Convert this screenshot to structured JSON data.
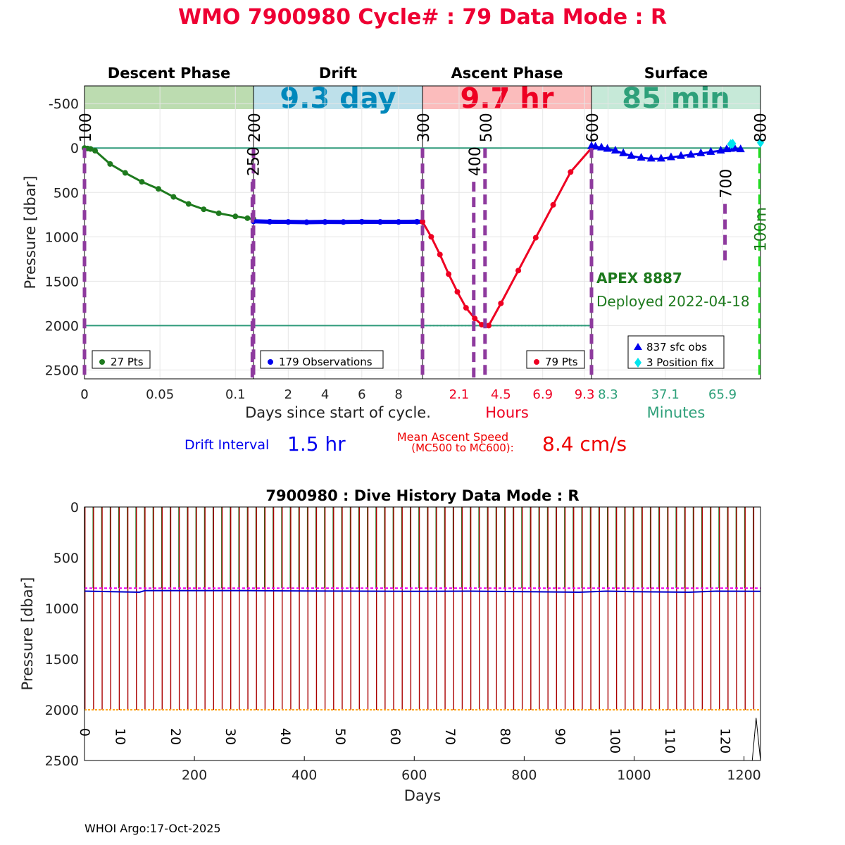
{
  "header": {
    "title": "WMO 7900980   Cycle# : 79   Data Mode : R"
  },
  "colors": {
    "title": "#ee0033",
    "descent": "#1e7a1e",
    "drift": "#0000ee",
    "ascent": "#ee0022",
    "surface": "#0000ee",
    "position_fix": "#00e5ee",
    "marker": "#8e3a9e",
    "ref_line": "#2e9a7a",
    "descent_band": "#bcdcb0",
    "drift_band": "#bde0ea",
    "ascent_band": "#fbbcbc",
    "surface_band": "#c6e9d8",
    "drift_label": "#0088bb",
    "ascent_label": "#ee0022",
    "surface_label": "#2ea07a",
    "apex": "#1e7a1e",
    "history_descent": "#1e7a1e",
    "history_ascent": "#aa0000",
    "history_drift": "#0000cc",
    "history_park": "#ee00ee",
    "history_profile": "#ffaa22"
  },
  "chart_data": [
    {
      "type": "line",
      "phases": [
        {
          "name": "Descent Phase",
          "duration": ""
        },
        {
          "name": "Drift",
          "duration": "9.3 day"
        },
        {
          "name": "Ascent Phase",
          "duration": "9.7 hr"
        },
        {
          "name": "Surface",
          "duration": "85 min"
        }
      ],
      "ylabel": "Pressure [dbar]",
      "ylim": [
        2600,
        -700
      ],
      "yticks": [
        -500,
        0,
        500,
        1000,
        1500,
        2000,
        2500
      ],
      "ref_lines": [
        0,
        2000
      ],
      "descent": {
        "xlabel": "Days since start of cycle.",
        "xlim": [
          0,
          0.112
        ],
        "xticks": [
          0,
          0.05,
          0.1
        ],
        "x": [
          0,
          0.002,
          0.004,
          0.007,
          0.017,
          0.027,
          0.038,
          0.049,
          0.059,
          0.069,
          0.079,
          0.089,
          0.1,
          0.108,
          0.112
        ],
        "y": [
          0,
          5,
          10,
          30,
          180,
          280,
          380,
          460,
          550,
          630,
          690,
          735,
          770,
          790,
          800
        ],
        "legend": "27 Pts"
      },
      "drift": {
        "xlim": [
          0.112,
          9.3
        ],
        "xticks": [
          2,
          4,
          6,
          8
        ],
        "x": [
          0.112,
          1,
          2,
          3,
          4,
          5,
          6,
          7,
          8,
          9,
          9.3
        ],
        "y": [
          825,
          830,
          832,
          835,
          832,
          833,
          830,
          832,
          832,
          830,
          830
        ],
        "legend": "179 Observations"
      },
      "ascent": {
        "xlabel": "Hours",
        "xlim": [
          0,
          9.7
        ],
        "xticks": [
          "2.1",
          "4.5",
          "6.9",
          "9.3"
        ],
        "x": [
          0,
          0.5,
          1.0,
          1.5,
          2.0,
          2.5,
          3.0,
          3.4,
          3.8,
          4.5,
          5.5,
          6.5,
          7.5,
          8.5,
          9.7
        ],
        "y": [
          830,
          1000,
          1200,
          1420,
          1620,
          1800,
          1920,
          1990,
          2000,
          1750,
          1380,
          1010,
          640,
          270,
          0
        ],
        "legend": "79 Pts"
      },
      "surface": {
        "xlabel": "Minutes",
        "xlim": [
          0,
          85
        ],
        "xticks": [
          "8.3",
          "37.1",
          "65.9"
        ],
        "x": [
          0,
          2,
          5,
          8,
          12,
          16,
          20,
          25,
          30,
          35,
          40,
          45,
          50,
          55,
          60,
          65,
          68,
          70,
          72,
          75
        ],
        "y": [
          -20,
          -15,
          -5,
          10,
          30,
          60,
          90,
          110,
          120,
          120,
          105,
          90,
          75,
          60,
          45,
          30,
          15,
          10,
          5,
          15
        ],
        "legend": "837 sfc obs",
        "position_fix_x": [
          70,
          71,
          85
        ],
        "position_fix_y": [
          -45,
          -50,
          -60
        ],
        "position_fix_legend": "3 Position fix"
      },
      "markers": [
        {
          "label": "100",
          "x_frac": 0.0,
          "y_top": 0,
          "y_bot": 2600
        },
        {
          "label": "200",
          "x_frac": 0.25,
          "y_top": 0,
          "y_bot": 2600
        },
        {
          "label": "250",
          "x_frac": 0.2483,
          "y_top": 380,
          "y_bot": 2600
        },
        {
          "label": "300",
          "x_frac": 0.5,
          "y_top": 0,
          "y_bot": 2600
        },
        {
          "label": "400",
          "x_frac": 0.5758,
          "y_top": 380,
          "y_bot": 2600
        },
        {
          "label": "500",
          "x_frac": 0.5925,
          "y_top": 0,
          "y_bot": 2600
        },
        {
          "label": "600",
          "x_frac": 0.75,
          "y_top": 0,
          "y_bot": 2600
        },
        {
          "label": "700",
          "x_frac": 0.9475,
          "y_top": 630,
          "y_bot": 1300
        },
        {
          "label": "800",
          "x_frac": 0.9983,
          "y_top": 0,
          "y_bot": 2600
        },
        {
          "label": "100m",
          "x_frac": 0.9983,
          "y_top": 850,
          "y_bot": 1300
        }
      ],
      "float_model": "APEX 8887",
      "deployed": "Deployed 2022-04-18",
      "drift_interval_label": "Drift Interval",
      "drift_interval_value": "1.5 hr",
      "ascent_speed_label_1": "Mean Ascent Speed",
      "ascent_speed_label_2": "(MC500 to MC600):",
      "ascent_speed_value": "8.4 cm/s"
    },
    {
      "type": "line",
      "title": "7900980 : Dive History      Data Mode : R",
      "xlabel": "Days",
      "ylabel": "Pressure [dbar]",
      "xlim": [
        0,
        1230
      ],
      "ylim": [
        0,
        2500
      ],
      "xticks": [
        200,
        400,
        600,
        800,
        1000,
        1200
      ],
      "yticks": [
        0,
        500,
        1000,
        1500,
        2000,
        2500
      ],
      "cycles": 79,
      "cycle_interval_days": 15.6,
      "cycle_labels": [
        "0",
        "10",
        "20",
        "30",
        "40",
        "50",
        "60",
        "70",
        "80",
        "90",
        "100",
        "110",
        "120"
      ],
      "cycle_label_days": [
        0,
        65,
        165,
        265,
        365,
        465,
        565,
        665,
        765,
        865,
        965,
        1065,
        1165
      ],
      "park_pressure": 800,
      "profile_pressure": 2000,
      "drift_pressure_days": [
        0,
        100,
        110,
        200,
        300,
        400,
        500,
        600,
        700,
        800,
        900,
        950,
        1000,
        1100,
        1150,
        1230
      ],
      "drift_pressure_values": [
        830,
        840,
        825,
        825,
        825,
        828,
        830,
        832,
        830,
        835,
        840,
        830,
        835,
        840,
        830,
        832
      ]
    }
  ],
  "footer": {
    "credit": "WHOI Argo:17-Oct-2025"
  }
}
